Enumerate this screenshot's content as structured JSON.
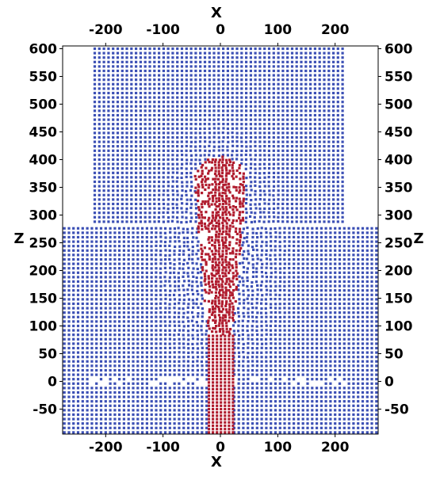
{
  "chart_data": {
    "type": "scatter",
    "title": "",
    "xlabel": "X",
    "ylabel": "Z",
    "xlim": [
      -275,
      275
    ],
    "ylim": [
      -95,
      605
    ],
    "x_ticks": [
      -200,
      -100,
      0,
      100,
      200
    ],
    "y_ticks": [
      -50,
      0,
      50,
      100,
      150,
      200,
      250,
      300,
      350,
      400,
      450,
      500,
      550,
      600
    ],
    "x_tick_labels": [
      "-200",
      "-100",
      "0",
      "100",
      "200"
    ],
    "y_tick_labels": [
      "-50",
      "0",
      "50",
      "100",
      "150",
      "200",
      "250",
      "300",
      "350",
      "400",
      "450",
      "500",
      "550",
      "600"
    ],
    "grid": false,
    "series": [
      {
        "name": "blue particles",
        "color": "#3b4fb5",
        "regions": [
          {
            "x_range": [
              -275,
              275
            ],
            "z_range": [
              -95,
              285
            ]
          },
          {
            "x_range": [
              -222,
              222
            ],
            "z_range": [
              285,
              605
            ]
          }
        ],
        "spacing": 8
      },
      {
        "name": "red particles",
        "color": "#b01c2e",
        "stem": {
          "x_range": [
            -22,
            22
          ],
          "z_range": [
            -95,
            85
          ]
        },
        "plume": {
          "x_range": [
            -50,
            50
          ],
          "z_range": [
            85,
            405
          ]
        }
      }
    ]
  }
}
